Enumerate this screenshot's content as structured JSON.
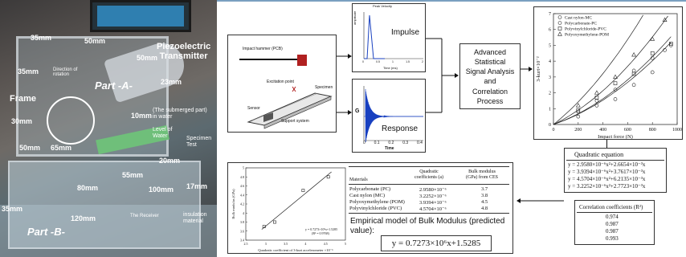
{
  "photo": {
    "labels": {
      "m35_top": "35mm",
      "m50_top": "50mm",
      "m50_mid": "50mm",
      "piezo": "Piezoelectric\nTransmitter",
      "m35_left": "35mm",
      "direction": "Direction of rotation",
      "part_a": "Part -A-",
      "m23": "23mm",
      "frame": "Frame",
      "m10": "10mm",
      "submerged": "(The submerged part)\nin water",
      "m30": "30mm",
      "level": "Level of\nWater",
      "specimen": "Specimen\nTest",
      "m50_left": "50mm",
      "m65": "65mm",
      "m20": "20mm",
      "m55": "55mm",
      "m80": "80mm",
      "m100": "100mm",
      "m17": "17mm",
      "m35_bottom": "35mm",
      "m120": "120mm",
      "receiver": "The Receiver",
      "insulation": "insulation\nmaterial",
      "part_b": "Part -B-"
    }
  },
  "setup": {
    "impact_hammer": "Impact hammer (PCB)",
    "specimen": "Specimen",
    "excitation": "Excitation point",
    "sensor": "Sensor",
    "support": "Support system"
  },
  "impulse_plot": {
    "title": "Peak Velocity",
    "label": "Impulse",
    "ylabel": "amplitude",
    "xticks": [
      "0",
      "0.5",
      "1",
      "1.5",
      "2"
    ],
    "xlabel": "Time (ms)"
  },
  "response_plot": {
    "label": "Response",
    "ylabel": "G",
    "xticks": [
      "0",
      "0.1",
      "0.2",
      "0.3",
      "0.4"
    ],
    "xlabel": "Time"
  },
  "analysis": {
    "line1": "Advanced",
    "line2": "Statistical",
    "line3": "Signal Analysis",
    "line4": "and",
    "line5": "Correlation",
    "line6": "Process"
  },
  "quad_chart": {
    "legend": [
      "Cast nylon-MC",
      "Polycarbonate-PC",
      "Polyvinylchloride-PVC",
      "Polyoxymethylene-POM"
    ],
    "ylabel": "3-kurt×10⁻²",
    "xlabel": "Impact force (N)",
    "xticks": [
      "0",
      "200",
      "400",
      "600",
      "800",
      "1000"
    ],
    "yticks": [
      "0",
      "1",
      "2",
      "3",
      "4",
      "5",
      "6",
      "7"
    ]
  },
  "quad_table": {
    "title": "Quadratic equation",
    "rows": [
      "y = 2.9580×10⁻⁶x²+2.6654×10⁻³x",
      "y = 3.9394×10⁻⁶x²+3.7617×10⁻³x",
      "y = 4.5704×10⁻⁶x²+6.2135×10⁻³x",
      "y = 3.2252×10⁻⁶x²+2.7723×10⁻³x"
    ]
  },
  "corr_table": {
    "title": "Correlation coefficients (R²)",
    "rows": [
      "0.974",
      "0.987",
      "0.987",
      "0.993"
    ]
  },
  "bulk_chart": {
    "ylabel": "Bulk modulus (GPa)",
    "xlabel": "Quadratic coefficient of 3-kurt accelerometer ×10⁻⁶",
    "xticks": [
      "2.5",
      "3",
      "3.5",
      "4",
      "4.5",
      "5"
    ],
    "yticks": [
      "3.4",
      "3.6",
      "3.8",
      "4",
      "4.2",
      "4.4",
      "4.6",
      "4.8",
      "5"
    ],
    "fit_line1": "y = 0.7273×10⁶x+1.5285",
    "fit_line2": "(R² = 0.9768)"
  },
  "materials_table": {
    "headers": [
      "Materials",
      "Quadratic\ncoefficients (a)",
      "Bulk modulus\n(GPa) from CES"
    ],
    "rows": [
      [
        "Polycarbonate (PC)",
        "2.9580×10⁻⁶",
        "3.7"
      ],
      [
        "Cast nylon (MC)",
        "3.2252×10⁻⁶",
        "3.8"
      ],
      [
        "Polyoxymethylene (POM)",
        "3.9394×10⁻⁶",
        "4.5"
      ],
      [
        "Polyvinylchloride (PVC)",
        "4.5704×10⁻⁶",
        "4.8"
      ]
    ]
  },
  "empirical": {
    "title": "Empirical model of Bulk Modulus (predicted value):",
    "equation": "y = 0.7273×10⁶x+1.5285"
  },
  "chart_data": [
    {
      "type": "scatter",
      "xlabel": "Impact force (N)",
      "ylabel": "3-kurt×10⁻²",
      "xlim": [
        0,
        1000
      ],
      "ylim": [
        0,
        7
      ],
      "series": [
        {
          "name": "Cast nylon-MC",
          "marker": "o",
          "x": [
            200,
            350,
            500,
            650,
            800,
            900
          ],
          "y": [
            0.5,
            1.2,
            1.6,
            2.5,
            3.3,
            4.7
          ]
        },
        {
          "name": "Polycarbonate-PC",
          "marker": "circle",
          "x": [
            200,
            350,
            500,
            650,
            800,
            950
          ],
          "y": [
            0.8,
            1.5,
            2.2,
            3.4,
            4.2,
            5.0
          ]
        },
        {
          "name": "Polyvinylchloride-PVC",
          "marker": "square",
          "x": [
            200,
            350,
            500,
            650,
            800,
            950
          ],
          "y": [
            0.9,
            1.7,
            2.6,
            3.2,
            4.5,
            5.1
          ]
        },
        {
          "name": "Polyoxymethylene-POM",
          "marker": "triangle",
          "x": [
            200,
            350,
            500,
            650,
            800,
            900
          ],
          "y": [
            1.2,
            2.0,
            3.0,
            4.4,
            5.4,
            6.6
          ]
        }
      ]
    },
    {
      "type": "scatter",
      "xlabel": "Quadratic coefficient of 3-kurt accelerometer ×10⁻⁶",
      "ylabel": "Bulk modulus (GPa)",
      "xlim": [
        2.5,
        5
      ],
      "ylim": [
        3.4,
        5
      ],
      "series": [
        {
          "x": [
            2.958,
            3.2252,
            3.9394,
            4.5704
          ],
          "y": [
            3.7,
            3.8,
            4.5,
            4.8
          ]
        }
      ]
    }
  ]
}
